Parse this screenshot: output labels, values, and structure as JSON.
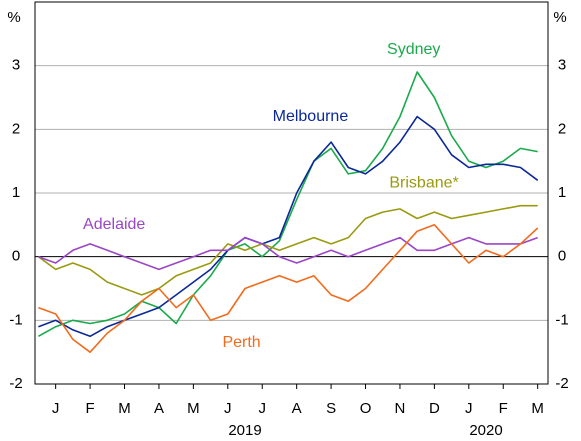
{
  "chart_data": {
    "type": "line",
    "y_unit_label": "%",
    "x": [
      0,
      0.5,
      1,
      1.5,
      2,
      2.5,
      3,
      3.5,
      4,
      4.5,
      5,
      5.5,
      6,
      6.5,
      7,
      7.5,
      8,
      8.5,
      9,
      9.5,
      10,
      10.5,
      11,
      11.5,
      12,
      12.5,
      13,
      13.5,
      14,
      14.5
    ],
    "xlim": [
      -0.1,
      14.8
    ],
    "xticks": [
      {
        "value": 0.5,
        "label": "J"
      },
      {
        "value": 1.5,
        "label": "F"
      },
      {
        "value": 2.5,
        "label": "M"
      },
      {
        "value": 3.5,
        "label": "A"
      },
      {
        "value": 4.5,
        "label": "M"
      },
      {
        "value": 5.5,
        "label": "J"
      },
      {
        "value": 6.5,
        "label": "J"
      },
      {
        "value": 7.5,
        "label": "A"
      },
      {
        "value": 8.5,
        "label": "S"
      },
      {
        "value": 9.5,
        "label": "O"
      },
      {
        "value": 10.5,
        "label": "N"
      },
      {
        "value": 11.5,
        "label": "D"
      },
      {
        "value": 12.5,
        "label": "J"
      },
      {
        "value": 13.5,
        "label": "F"
      },
      {
        "value": 14.5,
        "label": "M"
      }
    ],
    "year_labels": [
      "2019",
      "2020"
    ],
    "ylim": [
      -2,
      4
    ],
    "yticks": [
      -2,
      -1,
      0,
      1,
      2,
      3
    ],
    "grid": true,
    "series": [
      {
        "name": "Sydney",
        "color": "#1aaa4b",
        "values": [
          -1.25,
          -1.1,
          -1.0,
          -1.05,
          -1.0,
          -0.9,
          -0.7,
          -0.8,
          -1.05,
          -0.6,
          -0.3,
          0.1,
          0.2,
          0.0,
          0.25,
          0.9,
          1.5,
          1.7,
          1.3,
          1.35,
          1.7,
          2.2,
          2.9,
          2.5,
          1.9,
          1.5,
          1.4,
          1.5,
          1.7,
          1.65
        ]
      },
      {
        "name": "Melbourne",
        "color": "#0a2896",
        "values": [
          -1.1,
          -1.0,
          -1.15,
          -1.25,
          -1.1,
          -1.0,
          -0.9,
          -0.8,
          -0.6,
          -0.4,
          -0.2,
          0.1,
          0.3,
          0.2,
          0.3,
          1.0,
          1.5,
          1.8,
          1.4,
          1.3,
          1.5,
          1.8,
          2.2,
          2.0,
          1.6,
          1.4,
          1.45,
          1.45,
          1.4,
          1.2
        ]
      },
      {
        "name": "Brisbane*",
        "color": "#9a9a10",
        "values": [
          0.0,
          -0.2,
          -0.1,
          -0.2,
          -0.4,
          -0.5,
          -0.6,
          -0.5,
          -0.3,
          -0.2,
          -0.1,
          0.2,
          0.1,
          0.2,
          0.1,
          0.2,
          0.3,
          0.2,
          0.3,
          0.6,
          0.7,
          0.75,
          0.6,
          0.7,
          0.6,
          0.65,
          0.7,
          0.75,
          0.8,
          0.8
        ]
      },
      {
        "name": "Adelaide",
        "color": "#9b45c8",
        "values": [
          0.0,
          -0.1,
          0.1,
          0.2,
          0.1,
          0.0,
          -0.1,
          -0.2,
          -0.1,
          0.0,
          0.1,
          0.1,
          0.3,
          0.2,
          0.0,
          -0.1,
          0.0,
          0.1,
          0.0,
          0.1,
          0.2,
          0.3,
          0.1,
          0.1,
          0.2,
          0.3,
          0.2,
          0.2,
          0.2,
          0.3
        ]
      },
      {
        "name": "Perth",
        "color": "#f26b1d",
        "values": [
          -0.8,
          -0.9,
          -1.3,
          -1.5,
          -1.2,
          -1.0,
          -0.7,
          -0.5,
          -0.8,
          -0.6,
          -1.0,
          -0.9,
          -0.5,
          -0.4,
          -0.3,
          -0.4,
          -0.3,
          -0.6,
          -0.7,
          -0.5,
          -0.2,
          0.1,
          0.4,
          0.5,
          0.2,
          -0.1,
          0.1,
          0.0,
          0.2,
          0.45
        ]
      }
    ]
  }
}
